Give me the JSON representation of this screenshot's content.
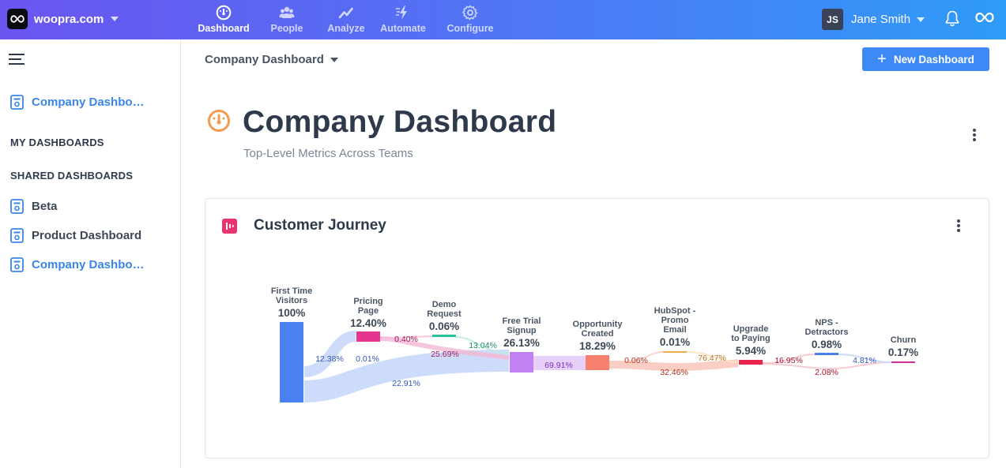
{
  "topbar": {
    "brand": "woopra.com",
    "nav": [
      {
        "label": "Dashboard",
        "icon": "gauge-icon",
        "active": true
      },
      {
        "label": "People",
        "icon": "people-icon",
        "active": false
      },
      {
        "label": "Analyze",
        "icon": "trend-icon",
        "active": false
      },
      {
        "label": "Automate",
        "icon": "bolt-icon",
        "active": false
      },
      {
        "label": "Configure",
        "icon": "gear-icon",
        "active": false
      }
    ],
    "user": {
      "initials": "JS",
      "name": "Jane Smith"
    }
  },
  "sidebar": {
    "current": "Company Dashbo…",
    "my_dashboards": "MY DASHBOARDS",
    "shared_dashboards": "SHARED DASHBOARDS",
    "items": [
      "Beta",
      "Product Dashboard",
      "Company Dashbo…"
    ]
  },
  "main": {
    "selector": "Company Dashboard",
    "new_button": "New Dashboard",
    "title": "Company Dashboard",
    "subtitle": "Top-Level Metrics Across Teams"
  },
  "card": {
    "title": "Customer Journey"
  },
  "chart_data": {
    "type": "sankey",
    "steps": [
      {
        "label": [
          "First Time",
          "Visitors"
        ],
        "value": "100%",
        "color": "#4a80f0"
      },
      {
        "label": [
          "Pricing",
          "Page"
        ],
        "value": "12.40%",
        "color": "#e6358f"
      },
      {
        "label": [
          "Demo",
          "Request"
        ],
        "value": "0.06%",
        "color": "#27c49a"
      },
      {
        "label": [
          "Free Trial",
          "Signup"
        ],
        "value": "26.13%",
        "color": "#c082f2"
      },
      {
        "label": [
          "Opportunity",
          "Created"
        ],
        "value": "18.29%",
        "color": "#f77f6e"
      },
      {
        "label": [
          "HubSpot -",
          "Promo",
          "Email"
        ],
        "value": "0.01%",
        "color": "#f2a94a"
      },
      {
        "label": [
          "Upgrade",
          "to Paying"
        ],
        "value": "5.94%",
        "color": "#e8244f"
      },
      {
        "label": [
          "NPS -",
          "Detractors"
        ],
        "value": "0.98%",
        "color": "#4a80f0"
      },
      {
        "label": [
          "Churn"
        ],
        "value": "0.17%",
        "color": "#d32f9c"
      }
    ],
    "flow_labels": [
      "12.38%",
      "0.01%",
      "22.91%",
      "0.40%",
      "25.69%",
      "13.04%",
      "69.91%",
      "0.06%",
      "32.46%",
      "76.47%",
      "16.95%",
      "2.08%",
      "4.81%"
    ]
  }
}
